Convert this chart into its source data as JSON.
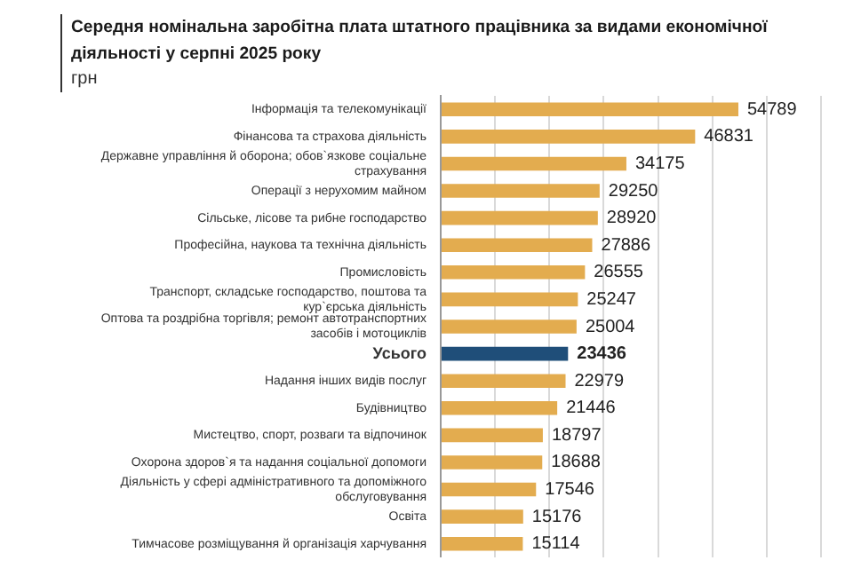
{
  "chart_data": {
    "type": "bar",
    "orientation": "horizontal",
    "title": "Середня номінальна заробітна плата штатного працівника за видами економічної діяльності у серпні 2025 року",
    "subtitle": "грн",
    "categories": [
      "Інформація та телекомунікації",
      "Фінансова та страхова діяльність",
      "Державне управління й оборона; обов`язкове соціальне страхування",
      "Операції з нерухомим майном",
      "Сільське, лісове та рибне господарство",
      "Професійна, наукова та технічна діяльність",
      "Промисловість",
      "Транспорт, складське господарство, поштова та кур`єрська діяльність",
      "Оптова та роздрібна торгівля; ремонт автотранспортних засобів і мотоциклів",
      "Усього",
      "Надання інших видів послуг",
      "Будівництво",
      "Мистецтво, спорт, розваги та відпочинок",
      "Охорона здоров`я та надання соціальної допомоги",
      "Діяльність у сфері адміністративного та допоміжного обслуговування",
      "Освіта",
      "Тимчасове розміщування й організація харчування"
    ],
    "values": [
      54789,
      46831,
      34175,
      29250,
      28920,
      27886,
      26555,
      25247,
      25004,
      23436,
      22979,
      21446,
      18797,
      18688,
      17546,
      15176,
      15114
    ],
    "colors": [
      "#e3ac4f",
      "#e3ac4f",
      "#e3ac4f",
      "#e3ac4f",
      "#e3ac4f",
      "#e3ac4f",
      "#e3ac4f",
      "#e3ac4f",
      "#e3ac4f",
      "#1f4e79",
      "#e3ac4f",
      "#e3ac4f",
      "#e3ac4f",
      "#e3ac4f",
      "#e3ac4f",
      "#e3ac4f",
      "#e3ac4f"
    ],
    "xlim": [
      0,
      70000
    ],
    "xticks": [
      {
        "value": 0,
        "label": null
      },
      {
        "value": 10000,
        "label": null
      },
      {
        "value": 20000,
        "label": null
      },
      {
        "value": 30000,
        "label": null
      },
      {
        "value": 40000,
        "label": null
      },
      {
        "value": 50000,
        "label": null
      },
      {
        "value": 60000,
        "label": null
      },
      {
        "value": 70000,
        "label": null
      }
    ],
    "grid": "x",
    "tick_labels": "y",
    "data_labels": true,
    "legend": false
  }
}
